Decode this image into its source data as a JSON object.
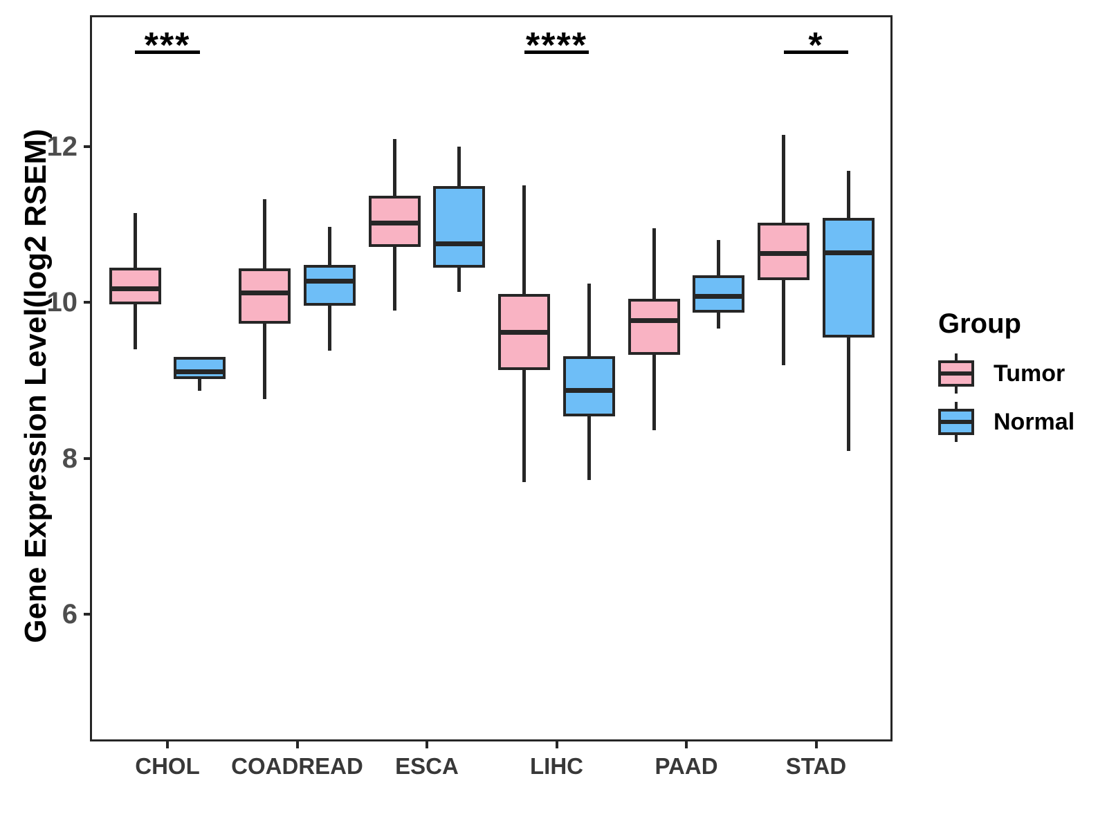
{
  "chart_data": {
    "type": "boxplot",
    "title": "",
    "xlabel": "",
    "ylabel": "Gene Expression Level(log2 RSEM)",
    "categories": [
      "CHOL",
      "COADREAD",
      "ESCA",
      "LIHC",
      "PAAD",
      "STAD"
    ],
    "groups": [
      {
        "name": "Tumor",
        "color": "#F9B3C3"
      },
      {
        "name": "Normal",
        "color": "#6EBEF7"
      }
    ],
    "y_axis": {
      "ticks": [
        12,
        10,
        8,
        6
      ],
      "tick_labels": [
        "12",
        "10",
        "8",
        "6"
      ],
      "domain": [
        4.37,
        13.69
      ],
      "grid": false
    },
    "legend": {
      "title": "Group",
      "position": "right"
    },
    "series": [
      {
        "category": "CHOL",
        "group": "Tumor",
        "min": 9.4,
        "q1": 9.98,
        "median": 10.18,
        "q3": 10.45,
        "max": 11.15
      },
      {
        "category": "CHOL",
        "group": "Normal",
        "min": 8.87,
        "q1": 9.02,
        "median": 9.11,
        "q3": 9.3,
        "max": 9.3
      },
      {
        "category": "COADREAD",
        "group": "Tumor",
        "min": 8.76,
        "q1": 9.73,
        "median": 10.12,
        "q3": 10.44,
        "max": 11.33
      },
      {
        "category": "COADREAD",
        "group": "Normal",
        "min": 9.38,
        "q1": 9.96,
        "median": 10.27,
        "q3": 10.48,
        "max": 10.97
      },
      {
        "category": "ESCA",
        "group": "Tumor",
        "min": 9.9,
        "q1": 10.71,
        "median": 11.02,
        "q3": 11.37,
        "max": 12.1
      },
      {
        "category": "ESCA",
        "group": "Normal",
        "min": 10.14,
        "q1": 10.45,
        "median": 10.75,
        "q3": 11.49,
        "max": 12.0
      },
      {
        "category": "LIHC",
        "group": "Tumor",
        "min": 7.7,
        "q1": 9.13,
        "median": 9.62,
        "q3": 10.11,
        "max": 11.5
      },
      {
        "category": "LIHC",
        "group": "Normal",
        "min": 7.72,
        "q1": 8.54,
        "median": 8.87,
        "q3": 9.31,
        "max": 10.24
      },
      {
        "category": "PAAD",
        "group": "Tumor",
        "min": 8.36,
        "q1": 9.33,
        "median": 9.77,
        "q3": 10.05,
        "max": 10.95
      },
      {
        "category": "PAAD",
        "group": "Normal",
        "min": 9.67,
        "q1": 9.87,
        "median": 10.08,
        "q3": 10.35,
        "max": 10.8
      },
      {
        "category": "STAD",
        "group": "Tumor",
        "min": 9.2,
        "q1": 10.29,
        "median": 10.63,
        "q3": 11.02,
        "max": 12.15
      },
      {
        "category": "STAD",
        "group": "Normal",
        "min": 8.1,
        "q1": 9.55,
        "median": 10.64,
        "q3": 11.09,
        "max": 11.69
      }
    ],
    "significance": [
      {
        "category": "CHOL",
        "label": "***"
      },
      {
        "category": "LIHC",
        "label": "****"
      },
      {
        "category": "STAD",
        "label": "*"
      }
    ],
    "colors": {
      "box_line": "#262626",
      "panel_border": "#262626",
      "y_tick_text": "#4d4d4d",
      "x_tick_text": "#383838"
    }
  }
}
